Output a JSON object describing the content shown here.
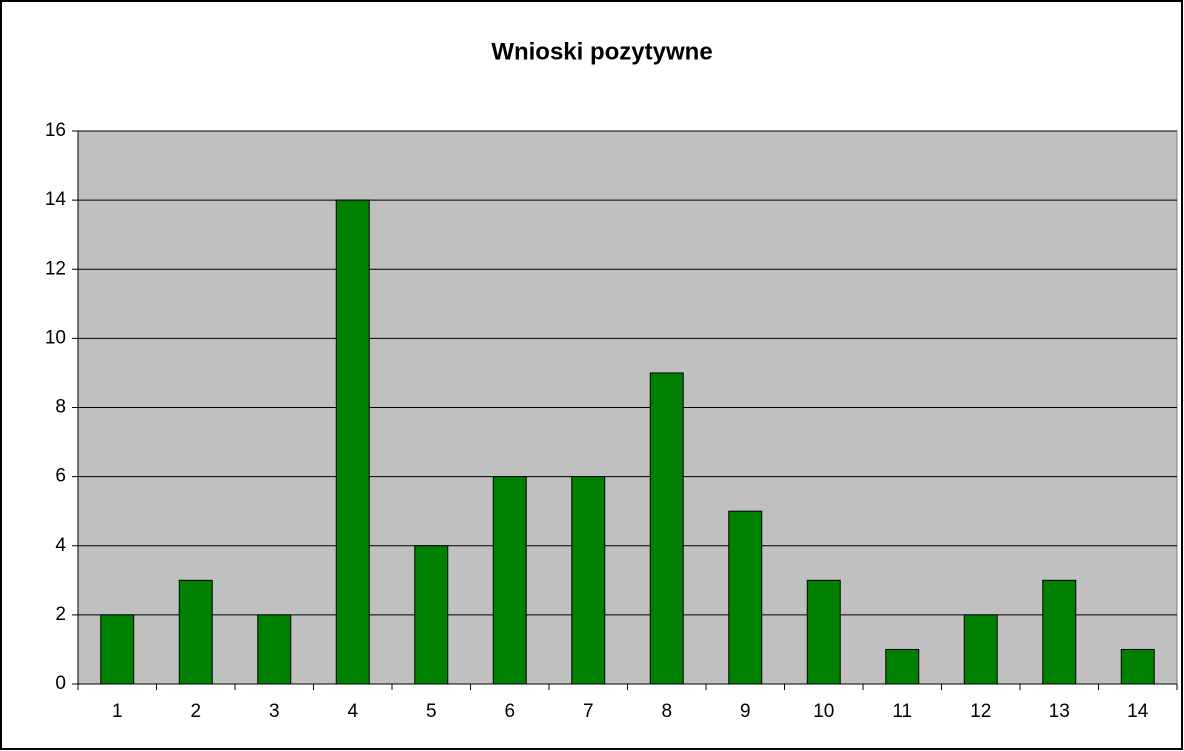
{
  "chart_data": {
    "type": "bar",
    "title": "Wnioski pozytywne",
    "categories": [
      "1",
      "2",
      "3",
      "4",
      "5",
      "6",
      "7",
      "8",
      "9",
      "10",
      "11",
      "12",
      "13",
      "14"
    ],
    "values": [
      2,
      3,
      2,
      14,
      4,
      6,
      6,
      9,
      5,
      3,
      1,
      2,
      3,
      1
    ],
    "color": "#008000",
    "ylim": [
      0,
      16
    ],
    "yticks": [
      0,
      2,
      4,
      6,
      8,
      10,
      12,
      14,
      16
    ],
    "grid": true
  }
}
